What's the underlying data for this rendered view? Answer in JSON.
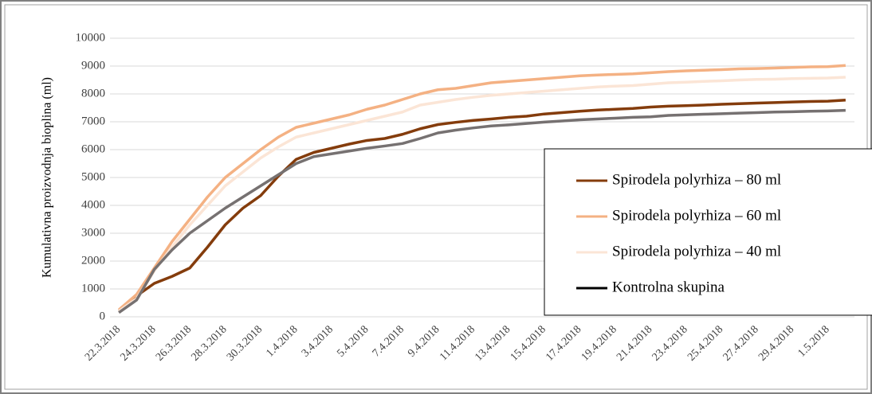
{
  "chart_data": {
    "type": "line",
    "y_label": "Kumulativna proizvodnja bioplina (ml)",
    "categories": [
      "22.3.2018",
      null,
      "24.3.2018",
      null,
      "26.3.2018",
      null,
      "28.3.2018",
      null,
      "30.3.2018",
      null,
      "1.4.2018",
      null,
      "3.4.2018",
      null,
      "5.4.2018",
      null,
      "7.4.2018",
      null,
      "9.4.2018",
      null,
      "11.4.2018",
      null,
      "13.4.2018",
      null,
      "15.4.2018",
      null,
      "17.4.2018",
      null,
      "19.4.2018",
      null,
      "21.4.2018",
      null,
      "23.4.2018",
      null,
      "25.4.2018",
      null,
      "27.4.2018",
      null,
      "29.4.2018",
      null,
      "1.5.2018",
      null
    ],
    "series": [
      {
        "name": "Spirodela polyrhiza – 80 ml",
        "color": "#843c0c",
        "values": [
          200,
          750,
          1200,
          1450,
          1750,
          2500,
          3300,
          3900,
          4350,
          5050,
          5650,
          5900,
          6050,
          6200,
          6330,
          6400,
          6550,
          6750,
          6900,
          6980,
          7050,
          7100,
          7160,
          7200,
          7280,
          7330,
          7380,
          7420,
          7450,
          7480,
          7530,
          7560,
          7580,
          7600,
          7630,
          7650,
          7670,
          7690,
          7710,
          7730,
          7740,
          7780
        ]
      },
      {
        "name": "Spirodela polyrhiza – 60 ml",
        "color": "#f4b183",
        "values": [
          250,
          800,
          1750,
          2700,
          3500,
          4300,
          5000,
          5500,
          6000,
          6450,
          6800,
          6950,
          7100,
          7250,
          7450,
          7600,
          7800,
          8000,
          8150,
          8200,
          8300,
          8400,
          8450,
          8500,
          8550,
          8600,
          8650,
          8680,
          8700,
          8720,
          8760,
          8800,
          8830,
          8850,
          8870,
          8900,
          8910,
          8930,
          8950,
          8970,
          8980,
          9020
        ]
      },
      {
        "name": "Spirodela polyrhiza – 40 ml",
        "color": "#fbe5d6",
        "values": [
          200,
          650,
          1650,
          2500,
          3300,
          4000,
          4700,
          5200,
          5700,
          6100,
          6450,
          6600,
          6750,
          6900,
          7050,
          7200,
          7350,
          7600,
          7700,
          7800,
          7880,
          7950,
          8000,
          8050,
          8100,
          8150,
          8200,
          8250,
          8280,
          8300,
          8350,
          8400,
          8420,
          8450,
          8470,
          8500,
          8520,
          8530,
          8550,
          8560,
          8570,
          8600
        ]
      },
      {
        "name": "Kontrolna skupina",
        "color": "#767171",
        "values": [
          150,
          600,
          1700,
          2400,
          3000,
          3450,
          3900,
          4300,
          4700,
          5100,
          5500,
          5750,
          5850,
          5950,
          6050,
          6130,
          6220,
          6400,
          6600,
          6700,
          6780,
          6850,
          6890,
          6940,
          6990,
          7030,
          7070,
          7100,
          7130,
          7160,
          7180,
          7230,
          7250,
          7270,
          7290,
          7310,
          7330,
          7350,
          7360,
          7380,
          7390,
          7410
        ]
      }
    ],
    "ylim": [
      0,
      10000
    ],
    "yticks": [
      0,
      1000,
      2000,
      3000,
      4000,
      5000,
      6000,
      7000,
      8000,
      9000,
      10000
    ],
    "grid": true
  }
}
